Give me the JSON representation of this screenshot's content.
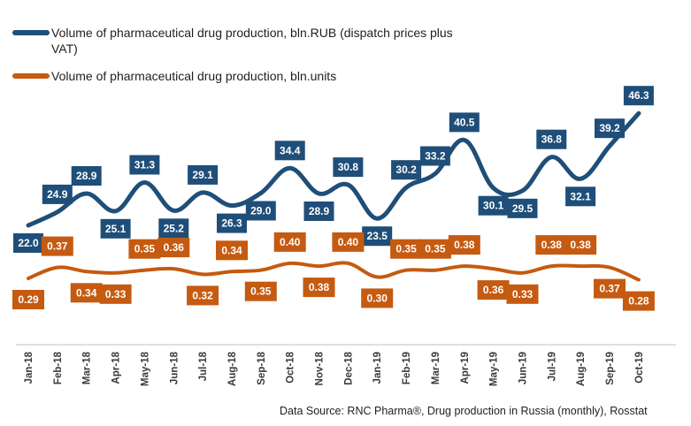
{
  "chart_data": {
    "type": "line",
    "categories": [
      "Jan-18",
      "Feb-18",
      "Mar-18",
      "Apr-18",
      "May-18",
      "Jun-18",
      "Jul-18",
      "Aug-18",
      "Sep-18",
      "Oct-18",
      "Nov-18",
      "Dec-18",
      "Jan-19",
      "Feb-19",
      "Mar-19",
      "Apr-19",
      "May-19",
      "Jun-19",
      "Jul-19",
      "Aug-19",
      "Sep-19",
      "Oct-19"
    ],
    "series": [
      {
        "name": "Volume of pharmaceutical drug production, bln.RUB (dispatch prices plus VAT)",
        "color": "#1f4e79",
        "values": [
          22.0,
          24.9,
          28.9,
          25.1,
          31.3,
          25.2,
          29.1,
          26.3,
          29.0,
          34.4,
          28.9,
          30.8,
          23.5,
          30.2,
          33.2,
          40.5,
          30.1,
          29.5,
          36.8,
          32.1,
          39.2,
          46.3
        ],
        "labels": [
          "22.0",
          "24.9",
          "28.9",
          "25.1",
          "31.3",
          "25.2",
          "29.1",
          "26.3",
          "29.0",
          "34.4",
          "28.9",
          "30.8",
          "23.5",
          "30.2",
          "33.2",
          "40.5",
          "30.1",
          "29.5",
          "36.8",
          "32.1",
          "39.2",
          "46.3"
        ]
      },
      {
        "name": "Volume of pharmaceutical drug production, bln.units",
        "color": "#c55a11",
        "values": [
          0.29,
          0.37,
          0.34,
          0.33,
          0.35,
          0.36,
          0.32,
          0.34,
          0.35,
          0.4,
          0.38,
          0.4,
          0.3,
          0.35,
          0.35,
          0.38,
          0.36,
          0.33,
          0.38,
          0.38,
          0.37,
          0.28
        ],
        "labels": [
          "0.29",
          "0.37",
          "0.34",
          "0.33",
          "0.35",
          "0.36",
          "0.32",
          "0.34",
          "0.35",
          "0.40",
          "0.38",
          "0.40",
          "0.30",
          "0.35",
          "0.35",
          "0.38",
          "0.36",
          "0.33",
          "0.38",
          "0.38",
          "0.37",
          "0.28"
        ]
      }
    ],
    "grid": false,
    "legend_position": "top-left"
  },
  "source": "Data Source: RNC Pharma®, Drug production in Russia (monthly), Rosstat"
}
